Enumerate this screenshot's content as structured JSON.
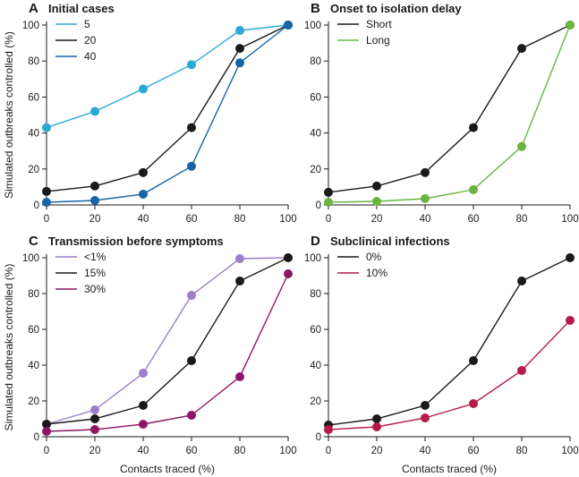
{
  "figure": {
    "x_axis_title": "Contacts traced (%)",
    "y_axis_title": "Simulated outbreaks controlled (%)"
  },
  "chart_data": [
    {
      "type": "line",
      "letter": "A",
      "title": "Initial cases",
      "x": [
        0,
        20,
        40,
        60,
        80,
        100
      ],
      "xticks": [
        "0",
        "20",
        "40",
        "60",
        "80",
        "100"
      ],
      "yticks": [
        "0",
        "20",
        "40",
        "60",
        "80",
        "100"
      ],
      "xlim": [
        0,
        100
      ],
      "ylim": [
        0,
        100
      ],
      "xlabel": "",
      "ylabel": "Simulated outbreaks controlled (%)",
      "grid": false,
      "legend_position": "top-left",
      "series": [
        {
          "name": "5",
          "color": "#2aa9d6",
          "values": [
            43,
            52,
            64.5,
            78,
            97,
            100
          ]
        },
        {
          "name": "20",
          "color": "#1a1a1a",
          "values": [
            7.5,
            10.5,
            18,
            43,
            87,
            100
          ]
        },
        {
          "name": "40",
          "color": "#1565a8",
          "values": [
            1.5,
            2.5,
            6,
            21.5,
            79,
            100
          ]
        }
      ]
    },
    {
      "type": "line",
      "letter": "B",
      "title": "Onset to isolation delay",
      "x": [
        0,
        20,
        40,
        60,
        80,
        100
      ],
      "xticks": [
        "0",
        "20",
        "40",
        "60",
        "80",
        "100"
      ],
      "yticks": [
        "0",
        "20",
        "40",
        "60",
        "80",
        "100"
      ],
      "xlim": [
        0,
        100
      ],
      "ylim": [
        0,
        100
      ],
      "xlabel": "",
      "ylabel": "",
      "grid": false,
      "legend_position": "top-left",
      "series": [
        {
          "name": "Short",
          "color": "#1a1a1a",
          "values": [
            7,
            10.5,
            18,
            43,
            87,
            100
          ]
        },
        {
          "name": "Long",
          "color": "#6ab53f",
          "values": [
            1.5,
            2,
            3.5,
            8.5,
            32.5,
            100
          ]
        }
      ]
    },
    {
      "type": "line",
      "letter": "C",
      "title": "Transmission before symptoms",
      "x": [
        0,
        20,
        40,
        60,
        80,
        100
      ],
      "xticks": [
        "0",
        "20",
        "40",
        "60",
        "80",
        "100"
      ],
      "yticks": [
        "0",
        "20",
        "40",
        "60",
        "80",
        "100"
      ],
      "xlim": [
        0,
        100
      ],
      "ylim": [
        0,
        100
      ],
      "xlabel": "Contacts traced (%)",
      "ylabel": "Simulated outbreaks controlled (%)",
      "grid": false,
      "legend_position": "top-left",
      "series": [
        {
          "name": "<1%",
          "color": "#9b7fc8",
          "values": [
            7,
            15,
            35.5,
            79,
            99.5,
            100
          ]
        },
        {
          "name": "15%",
          "color": "#1a1a1a",
          "values": [
            7,
            10,
            17.5,
            42.5,
            87,
            100
          ]
        },
        {
          "name": "30%",
          "color": "#8e1762",
          "values": [
            3,
            4,
            7,
            12,
            33.5,
            91
          ]
        }
      ]
    },
    {
      "type": "line",
      "letter": "D",
      "title": "Subclinical infections",
      "x": [
        0,
        20,
        40,
        60,
        80,
        100
      ],
      "xticks": [
        "0",
        "20",
        "40",
        "60",
        "80",
        "100"
      ],
      "yticks": [
        "0",
        "20",
        "40",
        "60",
        "80",
        "100"
      ],
      "xlim": [
        0,
        100
      ],
      "ylim": [
        0,
        100
      ],
      "xlabel": "Contacts traced (%)",
      "ylabel": "",
      "grid": false,
      "legend_position": "top-left",
      "series": [
        {
          "name": "0%",
          "color": "#1a1a1a",
          "values": [
            6.5,
            10,
            17.5,
            42.5,
            87,
            100
          ]
        },
        {
          "name": "10%",
          "color": "#b51a4a",
          "values": [
            4,
            5.5,
            10.5,
            18.5,
            37,
            65
          ]
        }
      ]
    }
  ]
}
